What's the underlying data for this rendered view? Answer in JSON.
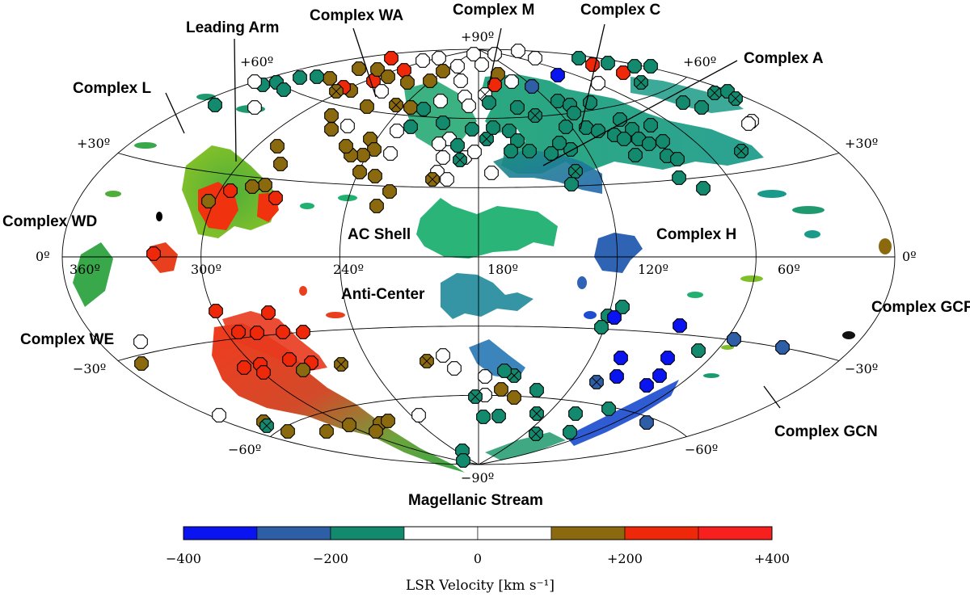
{
  "figure": {
    "labels": {
      "complex_wa": "Complex WA",
      "complex_m": "Complex M",
      "complex_c": "Complex C",
      "leading_arm": "Leading Arm",
      "complex_a": "Complex A",
      "complex_l": "Complex L",
      "complex_wd": "Complex WD",
      "ac_shell": "AC Shell",
      "complex_h": "Complex H",
      "anti_center": "Anti-Center",
      "complex_gcp": "Complex GCP",
      "complex_we": "Complex WE",
      "complex_gcn": "Complex GCN",
      "magellanic_stream": "Magellanic Stream"
    },
    "coords": {
      "lat_p90": "+90º",
      "lat_p60_left": "+60º",
      "lat_p60_right": "+60º",
      "lat_p30_left": "+30º",
      "lat_p30_right": "+30º",
      "lat_0_left": "0º",
      "lat_0_right": "0º",
      "lat_m30_left": "−30º",
      "lat_m30_right": "−30º",
      "lat_m60_left": "−60º",
      "lat_m60_right": "−60º",
      "lat_m90": "−90º",
      "lon_360": "360º",
      "lon_300": "300º",
      "lon_240": "240º",
      "lon_180": "180º",
      "lon_120": "120º",
      "lon_60": "60º"
    },
    "colorbar": {
      "title": "LSR Velocity [km s⁻¹]",
      "ticks": [
        "−400",
        "−200",
        "0",
        "+200",
        "+400"
      ],
      "bins": [
        {
          "from": -400,
          "to": -300,
          "color": "#0a14f0"
        },
        {
          "from": -300,
          "to": -200,
          "color": "#2e5fa6"
        },
        {
          "from": -200,
          "to": -100,
          "color": "#138a6e"
        },
        {
          "from": -100,
          "to": 0,
          "color": "#ffffff"
        },
        {
          "from": 0,
          "to": 100,
          "color": "#ffffff"
        },
        {
          "from": 100,
          "to": 200,
          "color": "#8b6a0f"
        },
        {
          "from": 200,
          "to": 300,
          "color": "#f0280a"
        },
        {
          "from": 300,
          "to": 400,
          "color": "#f81f1f"
        }
      ]
    }
  }
}
